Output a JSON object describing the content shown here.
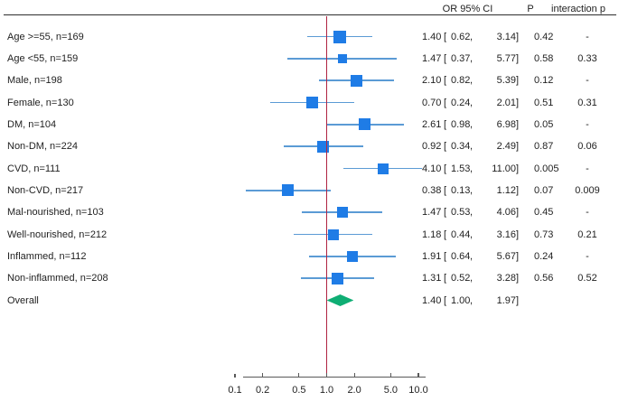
{
  "chart_data": {
    "type": "forest",
    "title": "",
    "columns": {
      "or_ci": "OR 95% CI",
      "p": "P",
      "interaction_p": "interaction p"
    },
    "or_format": {
      "open": "[",
      "comma": ",",
      "close": "]"
    },
    "axis": {
      "scale": "log10",
      "xlim": [
        0.1,
        10
      ],
      "ref_line": "1.0",
      "tick_values": [
        0.1,
        0.2,
        0.5,
        1.0,
        2.0,
        5.0,
        10.0
      ],
      "tick_labels": [
        "0.1",
        "0.2",
        "0.5",
        "1.0",
        "2.0",
        "5.0",
        "10.0"
      ]
    },
    "rows": [
      {
        "label": "Age >=55, n=169",
        "or": "1.40",
        "ci_low": "0.62",
        "ci_high": "3.14",
        "p": "0.42",
        "interaction_p": "-",
        "marker": "square",
        "marker_size": 14
      },
      {
        "label": "Age <55, n=159",
        "or": "1.47",
        "ci_low": "0.37",
        "ci_high": "5.77",
        "p": "0.58",
        "interaction_p": "0.33",
        "marker": "square",
        "marker_size": 10
      },
      {
        "label": "Male, n=198",
        "or": "2.10",
        "ci_low": "0.82",
        "ci_high": "5.39",
        "p": "0.12",
        "interaction_p": "-",
        "marker": "square",
        "marker_size": 13
      },
      {
        "label": "Female, n=130",
        "or": "0.70",
        "ci_low": "0.24",
        "ci_high": "2.01",
        "p": "0.51",
        "interaction_p": "0.31",
        "marker": "square",
        "marker_size": 13
      },
      {
        "label": "DM, n=104",
        "or": "2.61",
        "ci_low": "0.98",
        "ci_high": "6.98",
        "p": "0.05",
        "interaction_p": "-",
        "marker": "square",
        "marker_size": 13
      },
      {
        "label": "Non-DM, n=224",
        "or": "0.92",
        "ci_low": "0.34",
        "ci_high": "2.49",
        "p": "0.87",
        "interaction_p": "0.06",
        "marker": "square",
        "marker_size": 13
      },
      {
        "label": "CVD, n=111",
        "or": "4.10",
        "ci_low": "1.53",
        "ci_high": "11.00",
        "p": "0.005",
        "interaction_p": "-",
        "marker": "square",
        "marker_size": 12
      },
      {
        "label": "Non-CVD, n=217",
        "or": "0.38",
        "ci_low": "0.13",
        "ci_high": "1.12",
        "p": "0.07",
        "interaction_p": "0.009",
        "marker": "square",
        "marker_size": 13
      },
      {
        "label": "Mal-nourished, n=103",
        "or": "1.47",
        "ci_low": "0.53",
        "ci_high": "4.06",
        "p": "0.45",
        "interaction_p": "-",
        "marker": "square",
        "marker_size": 12
      },
      {
        "label": "Well-nourished, n=212",
        "or": "1.18",
        "ci_low": "0.44",
        "ci_high": "3.16",
        "p": "0.73",
        "interaction_p": "0.21",
        "marker": "square",
        "marker_size": 12
      },
      {
        "label": "Inflammed, n=112",
        "or": "1.91",
        "ci_low": "0.64",
        "ci_high": "5.67",
        "p": "0.24",
        "interaction_p": "-",
        "marker": "square",
        "marker_size": 12
      },
      {
        "label": "Non-inflammed, n=208",
        "or": "1.31",
        "ci_low": "0.52",
        "ci_high": "3.28",
        "p": "0.56",
        "interaction_p": "0.52",
        "marker": "square",
        "marker_size": 13
      },
      {
        "label": "Overall",
        "or": "1.40",
        "ci_low": "1.00",
        "ci_high": "1.97",
        "p": "",
        "interaction_p": "",
        "marker": "diamond"
      }
    ],
    "colors": {
      "square": "#1f7ce6",
      "ci_line": "#5b9bd5",
      "ref_line": "#b02442",
      "diamond": "#0fae74",
      "axis": "#595959",
      "header_line": "#2e2e2e",
      "text": "#1f1f1f"
    }
  }
}
